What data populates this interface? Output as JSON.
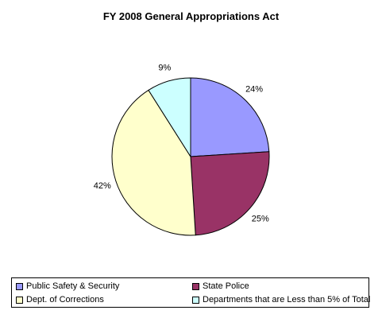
{
  "chart_data": {
    "type": "pie",
    "title": "FY 2008 General Appropriations Act",
    "categories": [
      "Public Safety & Security",
      "State Police",
      "Dept. of Corrections",
      "Departments that are Less than 5% of Total"
    ],
    "values": [
      24,
      25,
      42,
      9
    ],
    "data_labels": [
      "24%",
      "25%",
      "42%",
      "9%"
    ],
    "colors": [
      "#9999FF",
      "#993366",
      "#FFFFCC",
      "#CCFFFF"
    ],
    "legend_position": "bottom"
  }
}
